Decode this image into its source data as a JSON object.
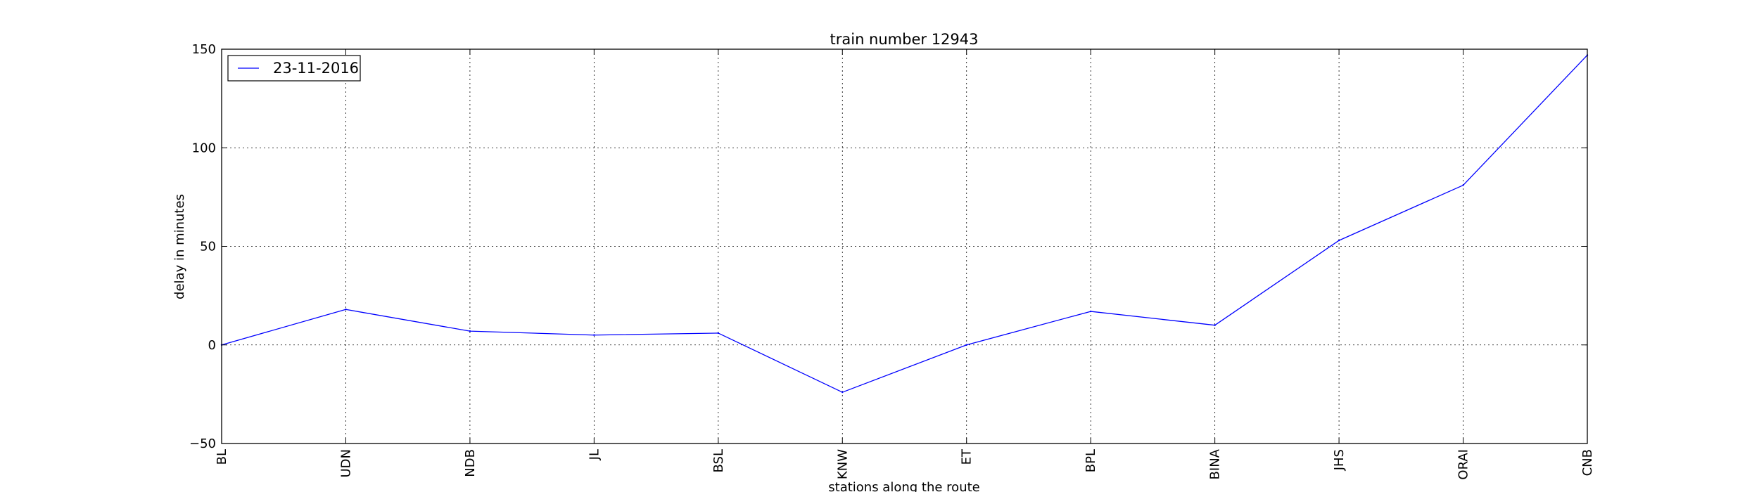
{
  "chart_data": {
    "type": "line",
    "title": "train number 12943",
    "xlabel": "stations along the route",
    "ylabel": "delay in minutes",
    "categories": [
      "BL",
      "UDN",
      "NDB",
      "JL",
      "BSL",
      "KNW",
      "ET",
      "BPL",
      "BINA",
      "JHS",
      "ORAI",
      "CNB"
    ],
    "series": [
      {
        "name": "23-11-2016",
        "color": "#0000ff",
        "values": [
          0,
          18,
          7,
          5,
          6,
          -24,
          0,
          17,
          10,
          53,
          81,
          147
        ]
      }
    ],
    "ylim": [
      -50,
      150
    ],
    "yticks": [
      -50,
      0,
      50,
      100,
      150
    ],
    "ytick_labels": [
      "−50",
      "0",
      "50",
      "100",
      "150"
    ],
    "grid": true,
    "grid_style": "dotted",
    "legend_position": "upper-left"
  }
}
